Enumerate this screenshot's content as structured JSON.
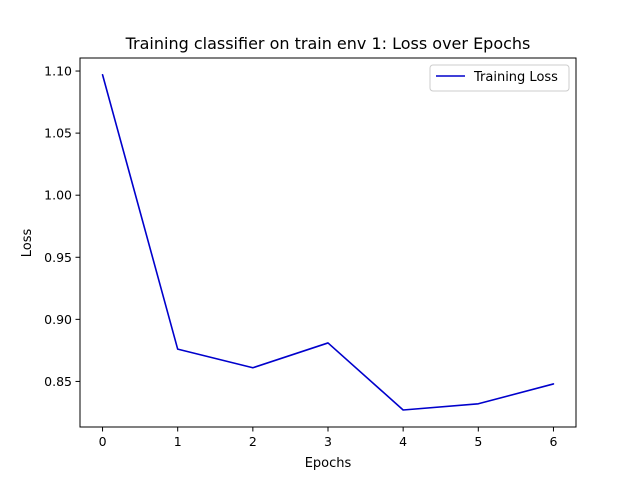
{
  "chart_data": {
    "type": "line",
    "title": "Training classifier on train env 1: Loss over Epochs",
    "xlabel": "Epochs",
    "ylabel": "Loss",
    "xlim": [
      -0.3,
      6.3
    ],
    "ylim": [
      0.8133,
      1.1105
    ],
    "xticks": [
      0,
      1,
      2,
      3,
      4,
      5,
      6
    ],
    "yticks": [
      0.85,
      0.9,
      0.95,
      1.0,
      1.05,
      1.1
    ],
    "grid": false,
    "legend_position": "top-right",
    "series": [
      {
        "name": "Training Loss",
        "color": "#0000cc",
        "x": [
          0,
          1,
          2,
          3,
          4,
          5,
          6
        ],
        "y": [
          1.097,
          0.876,
          0.861,
          0.881,
          0.827,
          0.832,
          0.848
        ]
      }
    ]
  }
}
